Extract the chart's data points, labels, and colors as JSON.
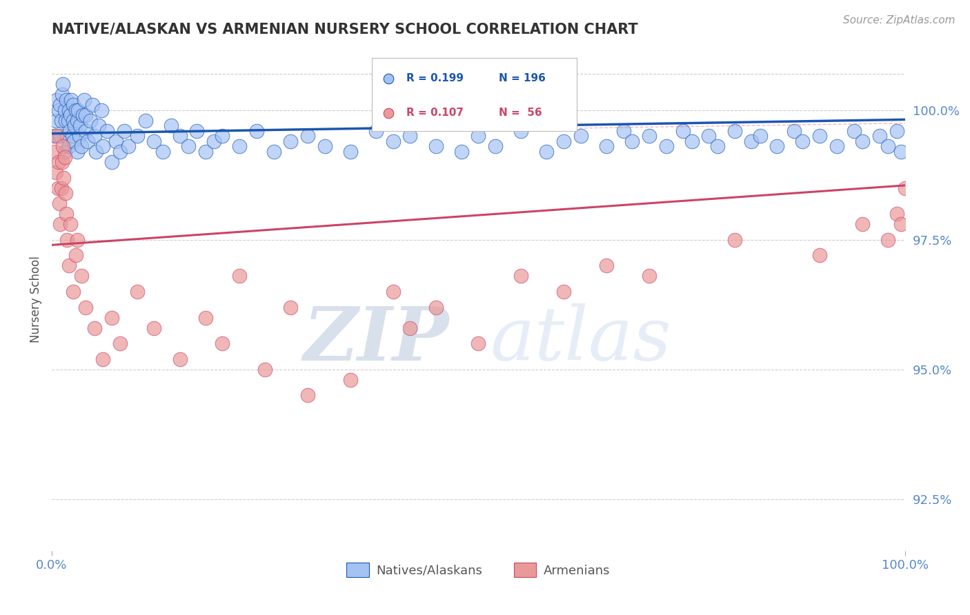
{
  "title": "NATIVE/ALASKAN VS ARMENIAN NURSERY SCHOOL CORRELATION CHART",
  "source_text": "Source: ZipAtlas.com",
  "ylabel": "Nursery School",
  "xlim": [
    0,
    100
  ],
  "ylim": [
    91.5,
    101.2
  ],
  "y_ticks": [
    92.5,
    95.0,
    97.5,
    100.0
  ],
  "legend_blue_label": "Natives/Alaskans",
  "legend_pink_label": "Armenians",
  "legend_R_blue": "R = 0.199",
  "legend_N_blue": "N = 196",
  "legend_R_pink": "R = 0.107",
  "legend_N_pink": "N =  56",
  "blue_color": "#a4c2f4",
  "pink_color": "#ea9999",
  "trend_blue_color": "#1a56b0",
  "trend_pink_color": "#cc4466",
  "dashed_line_color": "#e06070",
  "background_color": "#ffffff",
  "grid_color": "#cccccc",
  "watermark_color": "#d0d8ea",
  "title_color": "#333333",
  "axis_tick_color": "#5588cc",
  "right_label_color": "#5588cc",
  "blue_scatter_x": [
    0.3,
    0.5,
    0.6,
    0.8,
    1.0,
    1.0,
    1.1,
    1.2,
    1.3,
    1.5,
    1.5,
    1.6,
    1.7,
    1.8,
    1.9,
    2.0,
    2.0,
    2.1,
    2.2,
    2.3,
    2.4,
    2.5,
    2.5,
    2.6,
    2.7,
    2.8,
    3.0,
    3.0,
    3.1,
    3.2,
    3.3,
    3.5,
    3.6,
    3.8,
    4.0,
    4.0,
    4.2,
    4.5,
    4.8,
    5.0,
    5.2,
    5.5,
    5.8,
    6.0,
    6.5,
    7.0,
    7.5,
    8.0,
    8.5,
    9.0,
    10.0,
    11.0,
    12.0,
    13.0,
    14.0,
    15.0,
    16.0,
    17.0,
    18.0,
    19.0,
    20.0,
    22.0,
    24.0,
    26.0,
    28.0,
    30.0,
    32.0,
    35.0,
    38.0,
    40.0,
    42.0,
    45.0,
    48.0,
    50.0,
    52.0,
    55.0,
    58.0,
    60.0,
    62.0,
    65.0,
    67.0,
    68.0,
    70.0,
    72.0,
    74.0,
    75.0,
    77.0,
    78.0,
    80.0,
    82.0,
    83.0,
    85.0,
    87.0,
    88.0,
    90.0,
    92.0,
    94.0,
    95.0,
    97.0,
    98.0,
    99.0,
    99.5
  ],
  "blue_scatter_y": [
    99.5,
    99.8,
    100.2,
    100.0,
    99.5,
    100.1,
    99.8,
    100.3,
    100.5,
    99.2,
    100.0,
    99.8,
    100.2,
    99.5,
    99.8,
    99.3,
    100.0,
    99.6,
    99.9,
    100.2,
    99.5,
    99.8,
    100.1,
    99.4,
    99.7,
    100.0,
    99.2,
    99.8,
    100.0,
    99.5,
    99.7,
    99.3,
    99.9,
    100.2,
    99.6,
    99.9,
    99.4,
    99.8,
    100.1,
    99.5,
    99.2,
    99.7,
    100.0,
    99.3,
    99.6,
    99.0,
    99.4,
    99.2,
    99.6,
    99.3,
    99.5,
    99.8,
    99.4,
    99.2,
    99.7,
    99.5,
    99.3,
    99.6,
    99.2,
    99.4,
    99.5,
    99.3,
    99.6,
    99.2,
    99.4,
    99.5,
    99.3,
    99.2,
    99.6,
    99.4,
    99.5,
    99.3,
    99.2,
    99.5,
    99.3,
    99.6,
    99.2,
    99.4,
    99.5,
    99.3,
    99.6,
    99.4,
    99.5,
    99.3,
    99.6,
    99.4,
    99.5,
    99.3,
    99.6,
    99.4,
    99.5,
    99.3,
    99.6,
    99.4,
    99.5,
    99.3,
    99.6,
    99.4,
    99.5,
    99.3,
    99.6,
    99.2
  ],
  "pink_scatter_x": [
    0.3,
    0.5,
    0.6,
    0.7,
    0.8,
    0.9,
    1.0,
    1.1,
    1.2,
    1.3,
    1.4,
    1.5,
    1.6,
    1.7,
    1.8,
    2.0,
    2.2,
    2.5,
    2.8,
    3.0,
    3.5,
    4.0,
    5.0,
    6.0,
    7.0,
    8.0,
    10.0,
    12.0,
    15.0,
    18.0,
    20.0,
    22.0,
    25.0,
    28.0,
    30.0,
    35.0,
    40.0,
    42.0,
    45.0,
    50.0,
    55.0,
    60.0,
    65.0,
    70.0,
    80.0,
    90.0,
    95.0,
    98.0,
    99.0,
    99.5,
    100.0
  ],
  "pink_scatter_y": [
    99.2,
    98.8,
    99.5,
    98.5,
    99.0,
    98.2,
    97.8,
    98.5,
    99.0,
    99.3,
    98.7,
    99.1,
    98.4,
    98.0,
    97.5,
    97.0,
    97.8,
    96.5,
    97.2,
    97.5,
    96.8,
    96.2,
    95.8,
    95.2,
    96.0,
    95.5,
    96.5,
    95.8,
    95.2,
    96.0,
    95.5,
    96.8,
    95.0,
    96.2,
    94.5,
    94.8,
    96.5,
    95.8,
    96.2,
    95.5,
    96.8,
    96.5,
    97.0,
    96.8,
    97.5,
    97.2,
    97.8,
    97.5,
    98.0,
    97.8,
    98.5
  ],
  "blue_trend_x": [
    0,
    100
  ],
  "blue_trend_y": [
    99.55,
    99.82
  ],
  "pink_trend_x": [
    0,
    100
  ],
  "pink_trend_y": [
    97.4,
    98.55
  ],
  "dashed_trend_x": [
    60,
    100
  ],
  "dashed_trend_y": [
    99.65,
    99.75
  ]
}
